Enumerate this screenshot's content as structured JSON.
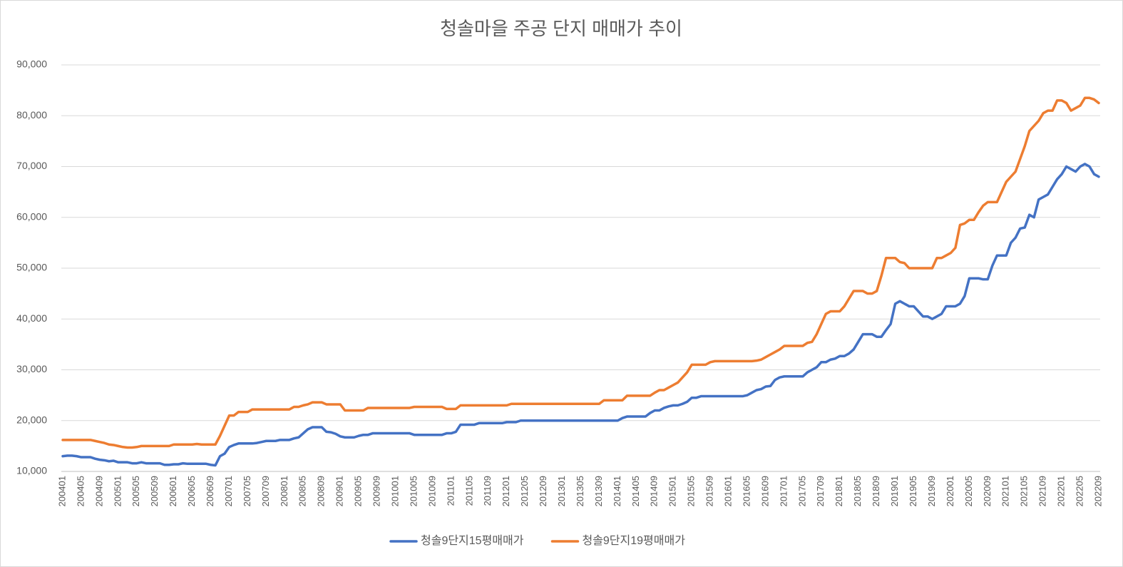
{
  "chart_data": {
    "type": "line",
    "title": "청솔마을 주공 단지 매매가 추이",
    "categories": [
      "200401",
      null,
      null,
      null,
      "200405",
      null,
      null,
      null,
      "200409",
      null,
      null,
      null,
      "200501",
      null,
      null,
      null,
      "200505",
      null,
      null,
      null,
      "200509",
      null,
      null,
      null,
      "200601",
      null,
      null,
      null,
      "200605",
      null,
      null,
      null,
      "200609",
      null,
      null,
      null,
      "200701",
      null,
      null,
      null,
      "200705",
      null,
      null,
      null,
      "200709",
      null,
      null,
      null,
      "200801",
      null,
      null,
      null,
      "200805",
      null,
      null,
      null,
      "200809",
      null,
      null,
      null,
      "200901",
      null,
      null,
      null,
      "200905",
      null,
      null,
      null,
      "200909",
      null,
      null,
      null,
      "201001",
      null,
      null,
      null,
      "201005",
      null,
      null,
      null,
      "201009",
      null,
      null,
      null,
      "201101",
      null,
      null,
      null,
      "201105",
      null,
      null,
      null,
      "201109",
      null,
      null,
      null,
      "201201",
      null,
      null,
      null,
      "201205",
      null,
      null,
      null,
      "201209",
      null,
      null,
      null,
      "201301",
      null,
      null,
      null,
      "201305",
      null,
      null,
      null,
      "201309",
      null,
      null,
      null,
      "201401",
      null,
      null,
      null,
      "201405",
      null,
      null,
      null,
      "201409",
      null,
      null,
      null,
      "201501",
      null,
      null,
      null,
      "201505",
      null,
      null,
      null,
      "201509",
      null,
      null,
      null,
      "201601",
      null,
      null,
      null,
      "201605",
      null,
      null,
      null,
      "201609",
      null,
      null,
      null,
      "201701",
      null,
      null,
      null,
      "201705",
      null,
      null,
      null,
      "201709",
      null,
      null,
      null,
      "201801",
      null,
      null,
      null,
      "201805",
      null,
      null,
      null,
      "201809",
      null,
      null,
      null,
      "201901",
      null,
      null,
      null,
      "201905",
      null,
      null,
      null,
      "201909",
      null,
      null,
      null,
      "202001",
      null,
      null,
      null,
      "202005",
      null,
      null,
      null,
      "202009",
      null,
      null,
      null,
      "202101",
      null,
      null,
      null,
      "202105",
      null,
      null,
      null,
      "202109",
      null,
      null,
      null,
      "202201",
      null,
      null,
      null,
      "202205",
      null,
      null,
      null,
      "202209"
    ],
    "series": [
      {
        "name": "청솔9단지15평매매가",
        "color": "#4472c4",
        "values": [
          13000,
          13100,
          13100,
          13000,
          12800,
          12800,
          12800,
          12500,
          12300,
          12200,
          12000,
          12100,
          11800,
          11800,
          11800,
          11600,
          11600,
          11800,
          11600,
          11600,
          11600,
          11600,
          11300,
          11300,
          11400,
          11400,
          11600,
          11500,
          11500,
          11500,
          11500,
          11500,
          11300,
          11200,
          13000,
          13500,
          14800,
          15200,
          15500,
          15500,
          15500,
          15500,
          15600,
          15800,
          16000,
          16000,
          16000,
          16200,
          16200,
          16200,
          16500,
          16700,
          17500,
          18300,
          18700,
          18700,
          18700,
          17800,
          17700,
          17400,
          16900,
          16700,
          16700,
          16700,
          17000,
          17200,
          17200,
          17500,
          17500,
          17500,
          17500,
          17500,
          17500,
          17500,
          17500,
          17500,
          17200,
          17200,
          17200,
          17200,
          17200,
          17200,
          17200,
          17500,
          17500,
          17800,
          19200,
          19200,
          19200,
          19200,
          19500,
          19500,
          19500,
          19500,
          19500,
          19500,
          19700,
          19700,
          19700,
          20000,
          20000,
          20000,
          20000,
          20000,
          20000,
          20000,
          20000,
          20000,
          20000,
          20000,
          20000,
          20000,
          20000,
          20000,
          20000,
          20000,
          20000,
          20000,
          20000,
          20000,
          20000,
          20500,
          20800,
          20800,
          20800,
          20800,
          20800,
          21500,
          22000,
          22000,
          22500,
          22800,
          23000,
          23000,
          23300,
          23700,
          24500,
          24500,
          24800,
          24800,
          24800,
          24800,
          24800,
          24800,
          24800,
          24800,
          24800,
          24800,
          25000,
          25500,
          26000,
          26200,
          26700,
          26800,
          28000,
          28500,
          28700,
          28700,
          28700,
          28700,
          28700,
          29500,
          30000,
          30500,
          31500,
          31500,
          32000,
          32200,
          32700,
          32700,
          33200,
          34000,
          35500,
          37000,
          37000,
          37000,
          36500,
          36500,
          37800,
          39000,
          43000,
          43500,
          43000,
          42500,
          42500,
          41500,
          40500,
          40500,
          40000,
          40500,
          41000,
          42500,
          42500,
          42500,
          43000,
          44500,
          48000,
          48000,
          48000,
          47800,
          47800,
          50500,
          52500,
          52500,
          52500,
          55000,
          56000,
          57800,
          58000,
          60500,
          60000,
          63500,
          64000,
          64500,
          66000,
          67500,
          68500,
          70000,
          69500,
          69000,
          70000,
          70500,
          70000,
          68500,
          68000
        ]
      },
      {
        "name": "청솔9단지19평매매가",
        "color": "#ed7d31",
        "values": [
          16200,
          16200,
          16200,
          16200,
          16200,
          16200,
          16200,
          16000,
          15800,
          15600,
          15300,
          15200,
          15000,
          14800,
          14700,
          14700,
          14800,
          15000,
          15000,
          15000,
          15000,
          15000,
          15000,
          15000,
          15300,
          15300,
          15300,
          15300,
          15300,
          15400,
          15300,
          15300,
          15300,
          15300,
          17000,
          19000,
          21000,
          21000,
          21700,
          21700,
          21700,
          22200,
          22200,
          22200,
          22200,
          22200,
          22200,
          22200,
          22200,
          22200,
          22700,
          22700,
          23000,
          23200,
          23600,
          23600,
          23600,
          23200,
          23200,
          23200,
          23200,
          22000,
          22000,
          22000,
          22000,
          22000,
          22500,
          22500,
          22500,
          22500,
          22500,
          22500,
          22500,
          22500,
          22500,
          22500,
          22700,
          22700,
          22700,
          22700,
          22700,
          22700,
          22700,
          22300,
          22300,
          22300,
          23000,
          23000,
          23000,
          23000,
          23000,
          23000,
          23000,
          23000,
          23000,
          23000,
          23000,
          23300,
          23300,
          23300,
          23300,
          23300,
          23300,
          23300,
          23300,
          23300,
          23300,
          23300,
          23300,
          23300,
          23300,
          23300,
          23300,
          23300,
          23300,
          23300,
          23300,
          24000,
          24000,
          24000,
          24000,
          24000,
          24900,
          24900,
          24900,
          24900,
          24900,
          24900,
          25500,
          26000,
          26000,
          26500,
          27000,
          27500,
          28500,
          29500,
          31000,
          31000,
          31000,
          31000,
          31500,
          31700,
          31700,
          31700,
          31700,
          31700,
          31700,
          31700,
          31700,
          31700,
          31800,
          32000,
          32500,
          33000,
          33500,
          34000,
          34700,
          34700,
          34700,
          34700,
          34700,
          35300,
          35500,
          37000,
          39000,
          41000,
          41500,
          41500,
          41500,
          42500,
          44000,
          45500,
          45500,
          45500,
          45000,
          45000,
          45500,
          48500,
          52000,
          52000,
          52000,
          51200,
          51000,
          50000,
          50000,
          50000,
          50000,
          50000,
          50000,
          52000,
          52000,
          52500,
          53000,
          54000,
          58500,
          58800,
          59500,
          59500,
          61000,
          62300,
          63000,
          63000,
          63000,
          65000,
          67000,
          68000,
          69000,
          71500,
          74000,
          77000,
          78000,
          79000,
          80500,
          81000,
          81000,
          83000,
          83000,
          82500,
          81000,
          81500,
          82000,
          83500,
          83500,
          83200,
          82500
        ]
      }
    ],
    "ylim": [
      10000,
      90000
    ],
    "yticks": [
      {
        "value": 10000,
        "label": "10,000"
      },
      {
        "value": 20000,
        "label": "20,000"
      },
      {
        "value": 30000,
        "label": "30,000"
      },
      {
        "value": 40000,
        "label": "40,000"
      },
      {
        "value": 50000,
        "label": "50,000"
      },
      {
        "value": 60000,
        "label": "60,000"
      },
      {
        "value": 70000,
        "label": "70,000"
      },
      {
        "value": 80000,
        "label": "80,000"
      },
      {
        "value": 90000,
        "label": "90,000"
      }
    ],
    "grid": true,
    "legend": "bottom"
  }
}
